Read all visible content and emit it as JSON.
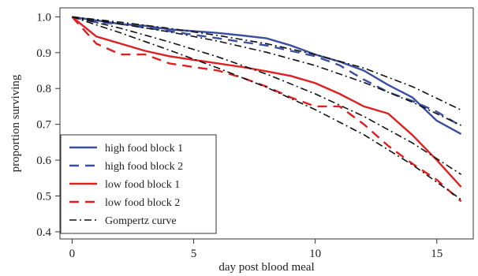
{
  "chart_data": {
    "type": "line",
    "xlabel": "day post blood meal",
    "ylabel": "proportion surviving",
    "xlim": [
      -0.5,
      16.5
    ],
    "ylim": [
      0.38,
      1.025
    ],
    "xticks": [
      0,
      5,
      10,
      15
    ],
    "yticks": [
      0.4,
      0.5,
      0.6,
      0.7,
      0.8,
      0.9,
      1.0
    ],
    "ytick_labels": [
      "0.4",
      "0.5",
      "0.6",
      "0.7",
      "0.8",
      "0.9",
      "1.0"
    ],
    "grid": false,
    "legend_position": "bottom-left",
    "series": [
      {
        "name": "high food block 1",
        "color": "#3b4fa0",
        "dash": "solid",
        "x": [
          0,
          1,
          2,
          3,
          4,
          5,
          6,
          7,
          8,
          9,
          10,
          11,
          12,
          13,
          14,
          15,
          16
        ],
        "y": [
          1.0,
          0.99,
          0.98,
          0.975,
          0.965,
          0.96,
          0.955,
          0.948,
          0.94,
          0.92,
          0.895,
          0.875,
          0.85,
          0.81,
          0.775,
          0.71,
          0.673
        ]
      },
      {
        "name": "high food block 2",
        "color": "#3b4fa0",
        "dash": "dashed",
        "x": [
          0,
          1,
          2,
          3,
          4,
          5,
          6,
          7,
          8,
          9,
          10,
          11,
          12,
          13,
          14,
          15,
          16
        ],
        "y": [
          1.0,
          0.985,
          0.98,
          0.97,
          0.96,
          0.95,
          0.94,
          0.93,
          0.92,
          0.905,
          0.89,
          0.865,
          0.825,
          0.79,
          0.765,
          0.735,
          0.695
        ]
      },
      {
        "name": "low food block 1",
        "color": "#e02020",
        "dash": "solid",
        "x": [
          0,
          1,
          2,
          3,
          4,
          5,
          6,
          7,
          8,
          9,
          10,
          11,
          12,
          13,
          14,
          15,
          16
        ],
        "y": [
          1.0,
          0.945,
          0.925,
          0.905,
          0.89,
          0.88,
          0.87,
          0.86,
          0.848,
          0.835,
          0.815,
          0.785,
          0.75,
          0.73,
          0.67,
          0.6,
          0.525
        ]
      },
      {
        "name": "low food block 2",
        "color": "#e02020",
        "dash": "dashed",
        "x": [
          0,
          1,
          2,
          3,
          4,
          5,
          6,
          7,
          8,
          9,
          10,
          11,
          12,
          13,
          14,
          15,
          16
        ],
        "y": [
          1.0,
          0.925,
          0.895,
          0.895,
          0.87,
          0.86,
          0.85,
          0.83,
          0.805,
          0.775,
          0.75,
          0.75,
          0.7,
          0.64,
          0.59,
          0.545,
          0.485
        ]
      },
      {
        "name": "Gompertz curve",
        "color": "#111111",
        "dash": "dashdot",
        "x": [
          0,
          2,
          4,
          6,
          8,
          10,
          12,
          14,
          16
        ],
        "y": [
          1.0,
          0.985,
          0.968,
          0.948,
          0.925,
          0.895,
          0.857,
          0.805,
          0.74
        ]
      },
      {
        "name": "",
        "color": "#111111",
        "dash": "dashdot",
        "x": [
          0,
          2,
          4,
          6,
          8,
          10,
          12,
          14,
          16
        ],
        "y": [
          1.0,
          0.98,
          0.958,
          0.932,
          0.901,
          0.864,
          0.817,
          0.762,
          0.697
        ]
      },
      {
        "name": "",
        "color": "#111111",
        "dash": "dashdot",
        "x": [
          0,
          2,
          4,
          6,
          8,
          10,
          12,
          14,
          16
        ],
        "y": [
          1.0,
          0.968,
          0.93,
          0.888,
          0.84,
          0.785,
          0.722,
          0.648,
          0.56
        ]
      },
      {
        "name": "",
        "color": "#111111",
        "dash": "dashdot",
        "x": [
          0,
          2,
          4,
          6,
          8,
          10,
          12,
          14,
          16
        ],
        "y": [
          1.0,
          0.955,
          0.907,
          0.857,
          0.803,
          0.741,
          0.671,
          0.587,
          0.49
        ]
      }
    ]
  }
}
